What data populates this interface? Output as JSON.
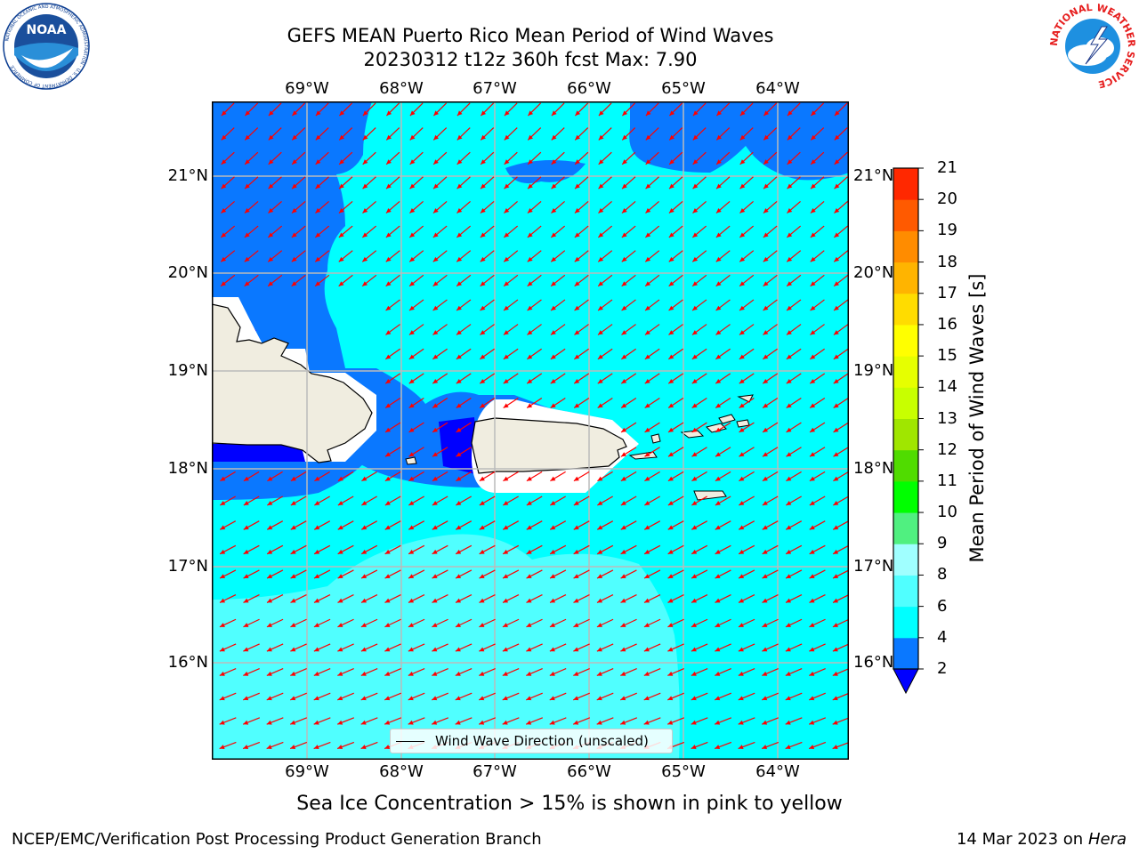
{
  "title_line1": "GEFS MEAN Puerto Rico Mean Period of Wind Waves",
  "title_line2": "20230312 t12z 360h fcst   Max: 7.90",
  "lon_labels": [
    "69°W",
    "68°W",
    "67°W",
    "66°W",
    "65°W",
    "64°W"
  ],
  "lat_labels": [
    "21°N",
    "20°N",
    "19°N",
    "18°N",
    "17°N",
    "16°N"
  ],
  "colorbar": {
    "title": "Mean Period of Wind Waves [s]",
    "ticks": [
      "2",
      "4",
      "6",
      "8",
      "9",
      "10",
      "11",
      "12",
      "13",
      "14",
      "15",
      "16",
      "17",
      "18",
      "19",
      "20",
      "21"
    ],
    "under_color": "#0000ff",
    "colors": [
      "#0a78ff",
      "#00ffff",
      "#50ffff",
      "#a0ffff",
      "#50f080",
      "#00ff00",
      "#50dc00",
      "#a0e600",
      "#c8ff00",
      "#e6ff00",
      "#ffff00",
      "#ffdc00",
      "#ffb400",
      "#ff8c00",
      "#ff5a00",
      "#ff2800",
      "#ff0000"
    ]
  },
  "legend_label": "Wind Wave Direction (unscaled)",
  "subtitle": "Sea Ice Concentration > 15% is shown in pink to yellow",
  "footer_left": "NCEP/EMC/Verification Post Processing Product Generation Branch",
  "footer_date": "14 Mar 2023",
  "footer_on": "on",
  "footer_host": "Hera",
  "logos": {
    "noaa_text": "NOAA",
    "noaa_ring": "NATIONAL OCEANIC AND ATMOSPHERIC ADMINISTRATION · U.S. DEPARTMENT OF COMMERCE",
    "nws_ring": "NATIONAL WEATHER SERVICE"
  },
  "colors": {
    "land": "#f0ede0",
    "arrow": "#ff0000",
    "grid": "#bbbbbb"
  }
}
